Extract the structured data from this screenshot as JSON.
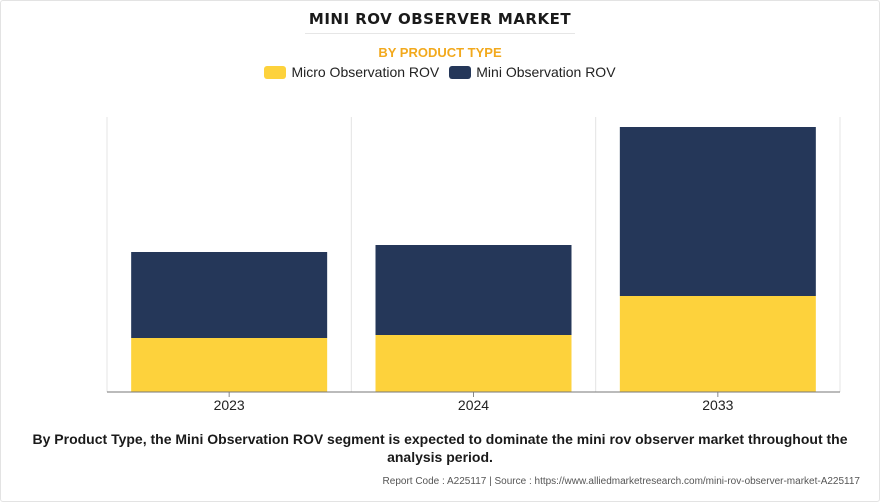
{
  "title": "MINI ROV OBSERVER MARKET",
  "subtitle": "BY PRODUCT TYPE",
  "caption": "By Product Type, the Mini Observation ROV segment is expected to dominate the mini rov observer market throughout the analysis period.",
  "footer": {
    "report_code": "Report Code : A225117",
    "separator": "|",
    "source": "Source : https://www.alliedmarketresearch.com/mini-rov-observer-market-A225117"
  },
  "colors": {
    "micro": "#fdd23c",
    "mini": "#253759"
  },
  "chart_data": {
    "type": "bar",
    "stacked": true,
    "categories": [
      "2023",
      "2024",
      "2033"
    ],
    "series": [
      {
        "name": "Micro Observation ROV",
        "values": [
          54,
          57,
          96
        ]
      },
      {
        "name": "Mini Observation ROV",
        "values": [
          86,
          90,
          169
        ]
      }
    ],
    "ylim": [
      0,
      275
    ],
    "grid": "vertical",
    "legend_position": "top-center"
  }
}
